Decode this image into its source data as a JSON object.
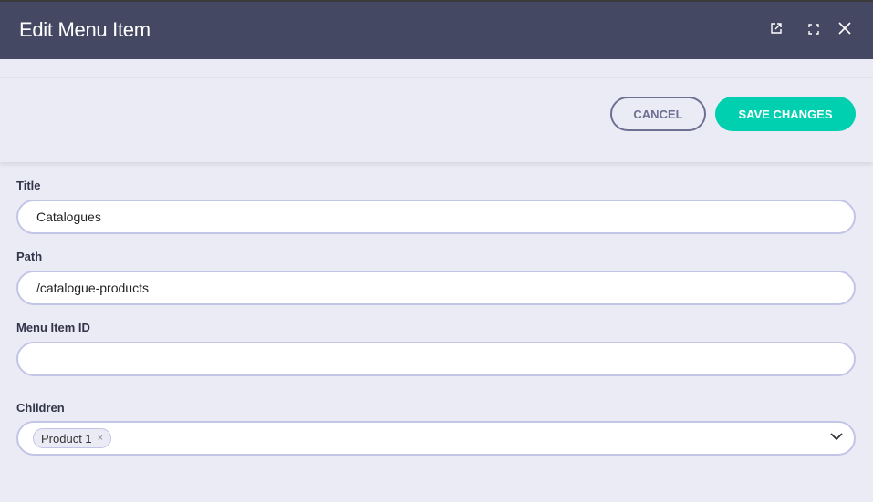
{
  "header": {
    "title": "Edit Menu Item",
    "icons": [
      "external-link-icon",
      "fullscreen-icon",
      "close-icon"
    ]
  },
  "toolbar": {
    "cancel_label": "CANCEL",
    "save_label": "SAVE CHANGES",
    "save_color": "#00cfb0"
  },
  "form": {
    "title": {
      "label": "Title",
      "value": "Catalogues"
    },
    "path": {
      "label": "Path",
      "value": "/catalogue-products"
    },
    "menu_item_id": {
      "label": "Menu Item ID",
      "value": ""
    },
    "children": {
      "label": "Children",
      "selected": [
        "Product 1"
      ],
      "remove_glyph": "×"
    }
  }
}
